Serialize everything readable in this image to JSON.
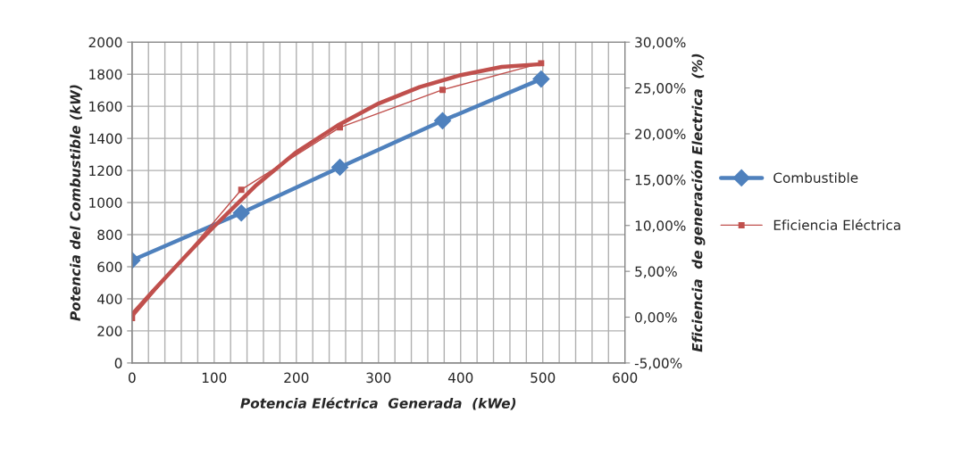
{
  "chart_data": {
    "type": "line",
    "xlabel": "Potencia Eléctrica  Generada  (kWe)",
    "ylabel": "Potencia del Combustible (kW)",
    "y2label": "Eficiencia  de generación Electrica  (%)",
    "x": [
      0,
      133,
      253,
      378,
      498
    ],
    "series": [
      {
        "name": "Combustible",
        "color": "#4f81bd",
        "values": [
          640,
          935,
          1220,
          1510,
          1770
        ],
        "marker": "diamond"
      },
      {
        "name": "Eficiencia Eléctrica",
        "color": "#c0504d",
        "axis": "y2",
        "values": [
          -0.1,
          13.9,
          20.7,
          24.8,
          27.7
        ],
        "marker": "square"
      },
      {
        "type": "line",
        "color": "#c0504d",
        "axis": "y2",
        "x": [
          0,
          25,
          50,
          75,
          100,
          150,
          200,
          250,
          300,
          350,
          400,
          450,
          498
        ],
        "values": [
          0.3,
          2.8,
          5.2,
          7.6,
          9.9,
          14.3,
          18.0,
          20.9,
          23.3,
          25.1,
          26.4,
          27.3,
          27.6
        ],
        "marker": "none"
      }
    ],
    "xlim": [
      0,
      600
    ],
    "xticks": [
      0,
      100,
      200,
      300,
      400,
      500,
      600
    ],
    "ylim": [
      0,
      2000
    ],
    "yticks": [
      0,
      200,
      400,
      600,
      800,
      1000,
      1200,
      1400,
      1600,
      1800,
      2000
    ],
    "y2lim": [
      -5,
      30
    ],
    "y2ticks": [
      {
        "value": -5,
        "label": "-5,00%"
      },
      {
        "value": 0,
        "label": "0,00%"
      },
      {
        "value": 5,
        "label": "5,00%"
      },
      {
        "value": 10,
        "label": "10,00%"
      },
      {
        "value": 15,
        "label": "15,00%"
      },
      {
        "value": 20,
        "label": "20,00%"
      },
      {
        "value": 25,
        "label": "25,00%"
      },
      {
        "value": 30,
        "label": "30,00%"
      }
    ],
    "grid": true,
    "legend": "right"
  }
}
